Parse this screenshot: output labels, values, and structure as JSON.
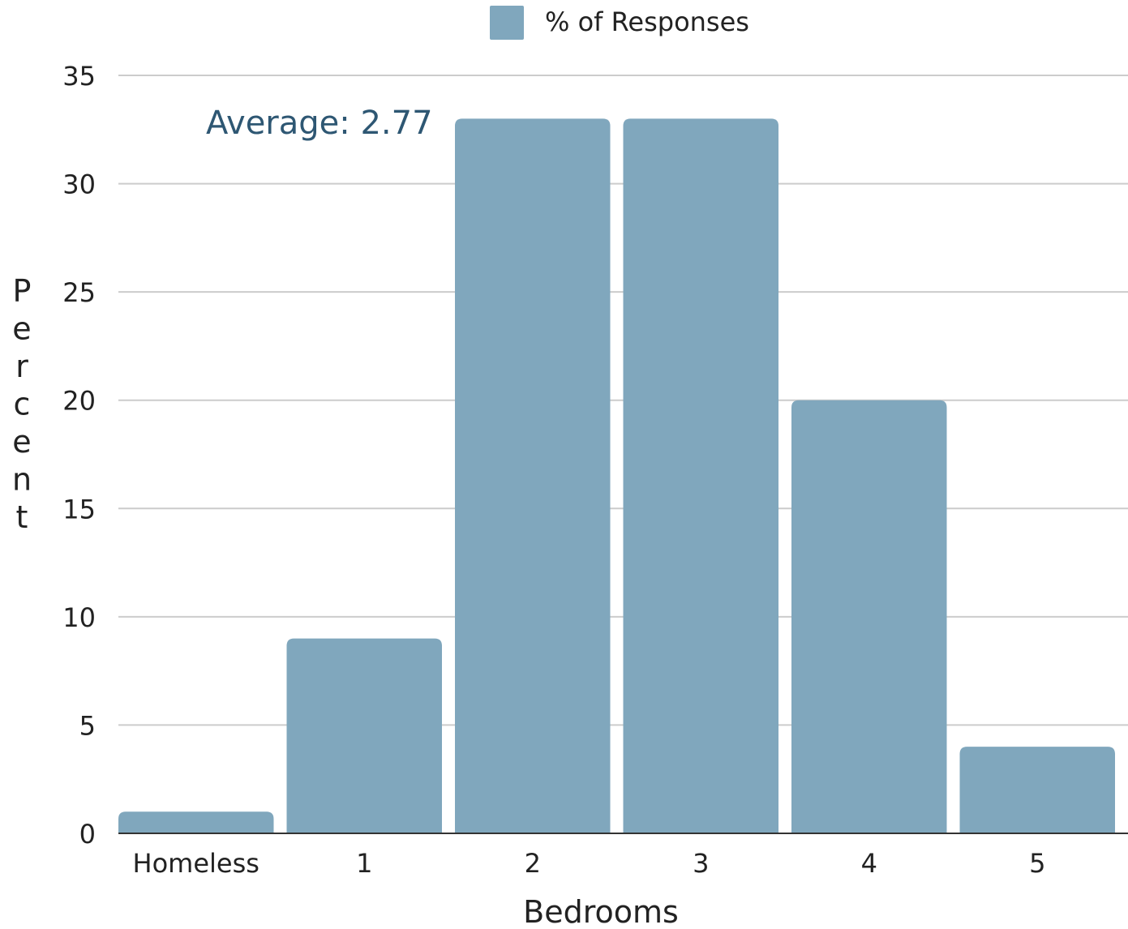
{
  "chart_data": {
    "type": "bar",
    "categories": [
      "Homeless",
      "1",
      "2",
      "3",
      "4",
      "5"
    ],
    "series": [
      {
        "name": "% of Responses",
        "values": [
          1,
          9,
          33,
          33,
          20,
          4
        ]
      }
    ],
    "xlabel": "Bedrooms",
    "ylabel": "Percent",
    "ylim": [
      0,
      35
    ],
    "yticks": [
      0,
      5,
      10,
      15,
      20,
      25,
      30,
      35
    ],
    "grid": true,
    "legend_position": "top-center",
    "annotation": "Average: 2.77",
    "colors": {
      "bar": "#80a7bd",
      "annotation": "#2e5773"
    }
  }
}
